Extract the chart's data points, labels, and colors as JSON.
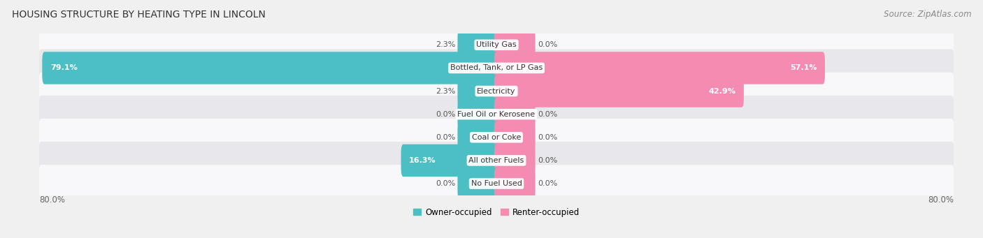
{
  "title": "HOUSING STRUCTURE BY HEATING TYPE IN LINCOLN",
  "source": "Source: ZipAtlas.com",
  "categories": [
    "Utility Gas",
    "Bottled, Tank, or LP Gas",
    "Electricity",
    "Fuel Oil or Kerosene",
    "Coal or Coke",
    "All other Fuels",
    "No Fuel Used"
  ],
  "owner_values": [
    2.3,
    79.1,
    2.3,
    0.0,
    0.0,
    16.3,
    0.0
  ],
  "renter_values": [
    0.0,
    57.1,
    42.9,
    0.0,
    0.0,
    0.0,
    0.0
  ],
  "owner_color": "#4bbfc4",
  "renter_color": "#f48cb1",
  "axis_max": 80.0,
  "bg_color": "#f0f0f0",
  "row_bg_color": "#e8e8ec",
  "row_white_color": "#f8f8fa",
  "title_fontsize": 10,
  "source_fontsize": 8.5,
  "label_fontsize": 8.5,
  "bar_label_fontsize": 8,
  "category_fontsize": 8,
  "legend_fontsize": 8.5,
  "min_renter_stub": 8.0,
  "min_owner_stub": 8.0
}
